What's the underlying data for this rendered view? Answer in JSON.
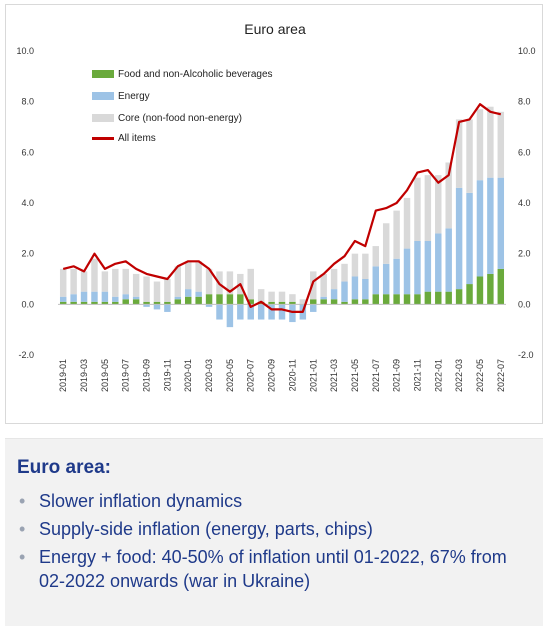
{
  "chart_data": {
    "type": "bar",
    "title": "Euro area",
    "ylim": [
      -2.0,
      10.0
    ],
    "yticks": [
      "10.0",
      "8.0",
      "6.0",
      "4.0",
      "2.0",
      "0.0",
      "-2.0"
    ],
    "ytick_values": [
      10,
      8,
      6,
      4,
      2,
      0,
      -2
    ],
    "legend_placement": "top-left",
    "categories": [
      "2019-01",
      "2019-02",
      "2019-03",
      "2019-04",
      "2019-05",
      "2019-06",
      "2019-07",
      "2019-08",
      "2019-09",
      "2019-10",
      "2019-11",
      "2019-12",
      "2020-01",
      "2020-02",
      "2020-03",
      "2020-04",
      "2020-05",
      "2020-06",
      "2020-07",
      "2020-08",
      "2020-09",
      "2020-10",
      "2020-11",
      "2020-12",
      "2021-01",
      "2021-02",
      "2021-03",
      "2021-04",
      "2021-05",
      "2021-06",
      "2021-07",
      "2021-08",
      "2021-09",
      "2021-10",
      "2021-11",
      "2021-12",
      "2022-01",
      "2022-02",
      "2022-03",
      "2022-04",
      "2022-05",
      "2022-06",
      "2022-07"
    ],
    "tick_labels": [
      "2019-01",
      "2019-03",
      "2019-05",
      "2019-07",
      "2019-09",
      "2019-11",
      "2020-01",
      "2020-03",
      "2020-05",
      "2020-07",
      "2020-09",
      "2020-11",
      "2021-01",
      "2021-03",
      "2021-05",
      "2021-07",
      "2021-09",
      "2021-11",
      "2022-01",
      "2022-03",
      "2022-05",
      "2022-07"
    ],
    "series": [
      {
        "name": "Food and non-Alcoholic beverages",
        "kind": "stacked-bar",
        "color": "#6aaa3c",
        "values": [
          0.1,
          0.1,
          0.1,
          0.1,
          0.1,
          0.1,
          0.2,
          0.2,
          0.1,
          0.1,
          0.1,
          0.2,
          0.3,
          0.3,
          0.4,
          0.4,
          0.4,
          0.4,
          0.2,
          0.1,
          0.1,
          0.1,
          0.1,
          0.0,
          0.2,
          0.2,
          0.2,
          0.1,
          0.2,
          0.2,
          0.4,
          0.4,
          0.4,
          0.4,
          0.4,
          0.5,
          0.5,
          0.5,
          0.6,
          0.8,
          1.1,
          1.2,
          1.4
        ]
      },
      {
        "name": "Energy",
        "kind": "stacked-bar",
        "color": "#9dc3e6",
        "values": [
          0.2,
          0.3,
          0.4,
          0.4,
          0.4,
          0.2,
          0.2,
          0.1,
          -0.1,
          -0.2,
          -0.3,
          0.1,
          0.3,
          0.2,
          -0.1,
          -0.6,
          -0.9,
          -0.6,
          -0.6,
          -0.6,
          -0.6,
          -0.6,
          -0.7,
          -0.6,
          -0.3,
          0.1,
          0.4,
          0.8,
          0.9,
          0.8,
          1.1,
          1.2,
          1.4,
          1.8,
          2.1,
          2.0,
          2.3,
          2.5,
          4.0,
          3.6,
          3.8,
          3.8,
          3.6
        ]
      },
      {
        "name": "Core (non-food non-energy)",
        "kind": "stacked-bar",
        "color": "#d9d9d9",
        "values": [
          1.1,
          1.0,
          0.8,
          1.3,
          0.8,
          1.1,
          1.0,
          0.9,
          1.0,
          0.8,
          0.9,
          1.2,
          1.1,
          1.2,
          1.0,
          0.9,
          0.9,
          0.8,
          1.2,
          0.5,
          0.4,
          0.4,
          0.3,
          0.2,
          1.1,
          0.9,
          0.8,
          0.7,
          0.9,
          1.0,
          0.8,
          1.6,
          1.9,
          2.0,
          2.5,
          2.6,
          2.3,
          2.6,
          2.7,
          2.9,
          2.8,
          2.8,
          2.6
        ]
      },
      {
        "name": "All items",
        "kind": "line",
        "color": "#c00000",
        "values": [
          1.4,
          1.5,
          1.3,
          2.0,
          1.4,
          1.6,
          1.7,
          1.4,
          1.2,
          1.1,
          1.0,
          1.5,
          1.7,
          1.7,
          1.4,
          0.8,
          0.5,
          0.8,
          -0.1,
          0.1,
          -0.2,
          -0.2,
          -0.3,
          -0.3,
          0.9,
          1.2,
          1.6,
          1.9,
          2.5,
          2.3,
          3.7,
          3.8,
          4.0,
          4.5,
          5.2,
          5.3,
          4.8,
          5.1,
          7.2,
          7.3,
          7.9,
          7.6,
          7.5
        ]
      }
    ]
  },
  "notes": {
    "title": "Euro area:",
    "bullets": [
      "Slower inflation dynamics",
      "Supply-side inflation (energy, parts, chips)",
      "Energy + food: 40-50% of inflation until 01-2022, 67% from 02-2022 onwards (war in Ukraine)"
    ]
  }
}
